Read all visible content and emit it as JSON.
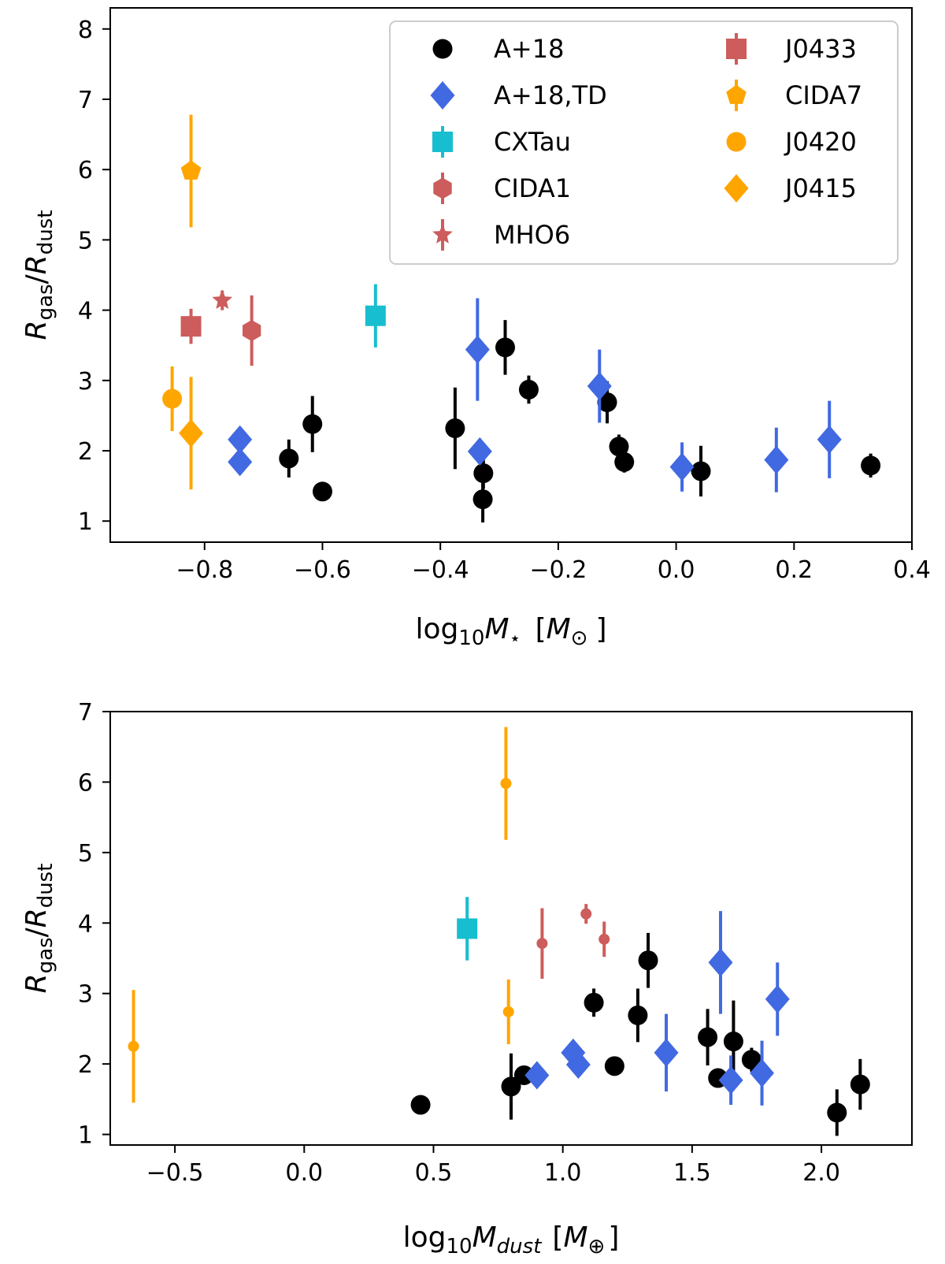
{
  "chart_data": [
    {
      "type": "scatter",
      "title": "",
      "xlabel": "log10 M⋆ [M⊙]",
      "ylabel": "Rgas/Rdust",
      "xlim": [
        -0.96,
        0.4
      ],
      "ylim": [
        0.7,
        8.3
      ],
      "xticks": [
        -0.8,
        -0.6,
        -0.4,
        -0.2,
        0.0,
        0.2,
        0.4
      ],
      "xtick_labels": [
        "−0.8",
        "−0.6",
        "−0.4",
        "−0.2",
        "0.0",
        "0.2",
        "0.4"
      ],
      "yticks": [
        1,
        2,
        3,
        4,
        5,
        6,
        7,
        8
      ],
      "ytick_labels": [
        "1",
        "2",
        "3",
        "4",
        "5",
        "6",
        "7",
        "8"
      ],
      "legend_position": "top-right",
      "series": [
        {
          "name": "A+18",
          "color": "#000000",
          "marker": "circle",
          "size": "large",
          "points": [
            {
              "x": -0.657,
              "y": 1.89,
              "err": 0.27
            },
            {
              "x": -0.617,
              "y": 2.38,
              "err": 0.4
            },
            {
              "x": -0.6,
              "y": 1.42,
              "err": 0.0
            },
            {
              "x": -0.375,
              "y": 2.32,
              "err": 0.58
            },
            {
              "x": -0.327,
              "y": 1.68,
              "err": 0.22
            },
            {
              "x": -0.328,
              "y": 1.31,
              "err": 0.33
            },
            {
              "x": -0.29,
              "y": 3.47,
              "err": 0.39
            },
            {
              "x": -0.25,
              "y": 2.87,
              "err": 0.2
            },
            {
              "x": -0.117,
              "y": 2.69,
              "err": 0.3
            },
            {
              "x": -0.097,
              "y": 2.06,
              "err": 0.17
            },
            {
              "x": -0.088,
              "y": 1.84,
              "err": 0.15
            },
            {
              "x": 0.042,
              "y": 1.71,
              "err": 0.36
            },
            {
              "x": 0.33,
              "y": 1.79,
              "err": 0.17
            }
          ]
        },
        {
          "name": "A+18,TD",
          "color": "#4169e1",
          "marker": "diamond",
          "size": "large",
          "points": [
            {
              "x": -0.74,
              "y": 2.16,
              "err": 0.14
            },
            {
              "x": -0.74,
              "y": 1.84,
              "err": 0.14
            },
            {
              "x": -0.337,
              "y": 3.44,
              "err": 0.73
            },
            {
              "x": -0.333,
              "y": 1.99,
              "err": 0.17
            },
            {
              "x": -0.13,
              "y": 2.92,
              "err": 0.52
            },
            {
              "x": 0.01,
              "y": 1.77,
              "err": 0.35
            },
            {
              "x": 0.17,
              "y": 1.87,
              "err": 0.46
            },
            {
              "x": 0.26,
              "y": 2.16,
              "err": 0.55
            }
          ]
        },
        {
          "name": "CXTau",
          "color": "#17becf",
          "marker": "square",
          "size": "large",
          "points": [
            {
              "x": -0.51,
              "y": 3.92,
              "err": 0.45
            }
          ]
        },
        {
          "name": "CIDA1",
          "color": "#cd5c5c",
          "marker": "hexagon",
          "size": "large",
          "points": [
            {
              "x": -0.72,
              "y": 3.71,
              "err": 0.5
            }
          ]
        },
        {
          "name": "MHO6",
          "color": "#cd5c5c",
          "marker": "star",
          "size": "large",
          "points": [
            {
              "x": -0.77,
              "y": 4.14,
              "err": 0.14
            }
          ]
        },
        {
          "name": "J0433",
          "color": "#cd5c5c",
          "marker": "square",
          "size": "large",
          "points": [
            {
              "x": -0.823,
              "y": 3.77,
              "err": 0.25
            }
          ]
        },
        {
          "name": "CIDA7",
          "color": "#ffa500",
          "marker": "pentagon",
          "size": "large",
          "points": [
            {
              "x": -0.823,
              "y": 5.98,
              "err": 0.8
            }
          ]
        },
        {
          "name": "J0420",
          "color": "#ffa500",
          "marker": "circle",
          "size": "large",
          "points": [
            {
              "x": -0.855,
              "y": 2.74,
              "err": 0.46
            }
          ]
        },
        {
          "name": "J0415",
          "color": "#ffa500",
          "marker": "diamond",
          "size": "large",
          "points": [
            {
              "x": -0.823,
              "y": 2.25,
              "err": 0.8
            }
          ]
        }
      ]
    },
    {
      "type": "scatter",
      "title": "",
      "xlabel": "log10 Mdust [M⊕]",
      "ylabel": "Rgas/Rdust",
      "xlim": [
        -0.75,
        2.35
      ],
      "ylim": [
        0.85,
        7.0
      ],
      "xticks": [
        -0.5,
        0.0,
        0.5,
        1.0,
        1.5,
        2.0
      ],
      "xtick_labels": [
        "−0.5",
        "0.0",
        "0.5",
        "1.0",
        "1.5",
        "2.0"
      ],
      "yticks": [
        1,
        2,
        3,
        4,
        5,
        6,
        7
      ],
      "ytick_labels": [
        "1",
        "2",
        "3",
        "4",
        "5",
        "6",
        "7"
      ],
      "series": [
        {
          "name": "A+18",
          "color": "#000000",
          "marker": "circle",
          "size": "large",
          "points": [
            {
              "x": 0.45,
              "y": 1.42,
              "err": 0.0
            },
            {
              "x": 0.8,
              "y": 1.68,
              "err": 0.47
            },
            {
              "x": 0.85,
              "y": 1.84,
              "err": 0.1
            },
            {
              "x": 1.12,
              "y": 2.87,
              "err": 0.2
            },
            {
              "x": 1.2,
              "y": 1.97,
              "err": 0.0
            },
            {
              "x": 1.29,
              "y": 2.69,
              "err": 0.38
            },
            {
              "x": 1.33,
              "y": 3.47,
              "err": 0.39
            },
            {
              "x": 1.56,
              "y": 2.38,
              "err": 0.4
            },
            {
              "x": 1.6,
              "y": 1.8,
              "err": 0.0
            },
            {
              "x": 1.66,
              "y": 2.32,
              "err": 0.58
            },
            {
              "x": 1.73,
              "y": 2.06,
              "err": 0.17
            },
            {
              "x": 2.06,
              "y": 1.31,
              "err": 0.33
            },
            {
              "x": 2.15,
              "y": 1.71,
              "err": 0.36
            }
          ]
        },
        {
          "name": "A+18,TD",
          "color": "#4169e1",
          "marker": "diamond",
          "size": "large",
          "points": [
            {
              "x": 0.9,
              "y": 1.84,
              "err": 0.14
            },
            {
              "x": 1.04,
              "y": 2.16,
              "err": 0.14
            },
            {
              "x": 1.06,
              "y": 1.99,
              "err": 0.17
            },
            {
              "x": 1.4,
              "y": 2.16,
              "err": 0.55
            },
            {
              "x": 1.61,
              "y": 3.44,
              "err": 0.73
            },
            {
              "x": 1.65,
              "y": 1.77,
              "err": 0.35
            },
            {
              "x": 1.77,
              "y": 1.87,
              "err": 0.46
            },
            {
              "x": 1.83,
              "y": 2.92,
              "err": 0.52
            }
          ]
        },
        {
          "name": "CXTau",
          "color": "#17becf",
          "marker": "square",
          "size": "large",
          "points": [
            {
              "x": 0.63,
              "y": 3.92,
              "err": 0.45
            }
          ]
        },
        {
          "name": "CIDA1",
          "color": "#cd5c5c",
          "marker": "circle",
          "size": "small",
          "points": [
            {
              "x": 0.92,
              "y": 3.71,
              "err": 0.5
            }
          ]
        },
        {
          "name": "MHO6",
          "color": "#cd5c5c",
          "marker": "circle",
          "size": "small",
          "points": [
            {
              "x": 1.09,
              "y": 4.13,
              "err": 0.14
            }
          ]
        },
        {
          "name": "J0433",
          "color": "#cd5c5c",
          "marker": "circle",
          "size": "small",
          "points": [
            {
              "x": 1.16,
              "y": 3.77,
              "err": 0.25
            }
          ]
        },
        {
          "name": "CIDA7",
          "color": "#ffa500",
          "marker": "circle",
          "size": "small",
          "points": [
            {
              "x": 0.78,
              "y": 5.98,
              "err": 0.8
            }
          ]
        },
        {
          "name": "J0420",
          "color": "#ffa500",
          "marker": "circle",
          "size": "small",
          "points": [
            {
              "x": 0.79,
              "y": 2.74,
              "err": 0.46
            }
          ]
        },
        {
          "name": "J0415",
          "color": "#ffa500",
          "marker": "circle",
          "size": "small",
          "points": [
            {
              "x": -0.66,
              "y": 2.25,
              "err": 0.8
            }
          ]
        }
      ]
    }
  ],
  "labels": {
    "top_ylabel_R1": "R",
    "top_ylabel_sub1": "gas",
    "top_ylabel_slash": "/",
    "top_ylabel_R2": "R",
    "top_ylabel_sub2": "dust",
    "top_xlabel_log": "log",
    "top_xlabel_sub": "10",
    "top_xlabel_M": "M",
    "top_xlabel_star": "⋆",
    "top_xlabel_unit_open": "[",
    "top_xlabel_unit_M": "M",
    "top_xlabel_unit_sub": "⊙",
    "top_xlabel_unit_close": "]",
    "bot_ylabel_R1": "R",
    "bot_ylabel_sub1": "gas",
    "bot_ylabel_slash": "/",
    "bot_ylabel_R2": "R",
    "bot_ylabel_sub2": "dust",
    "bot_xlabel_log": "log",
    "bot_xlabel_sub": "10",
    "bot_xlabel_M": "M",
    "bot_xlabel_dust": "dust",
    "bot_xlabel_unit_open": "[",
    "bot_xlabel_unit_M": "M",
    "bot_xlabel_unit_sub": "⊕",
    "bot_xlabel_unit_close": "]"
  }
}
